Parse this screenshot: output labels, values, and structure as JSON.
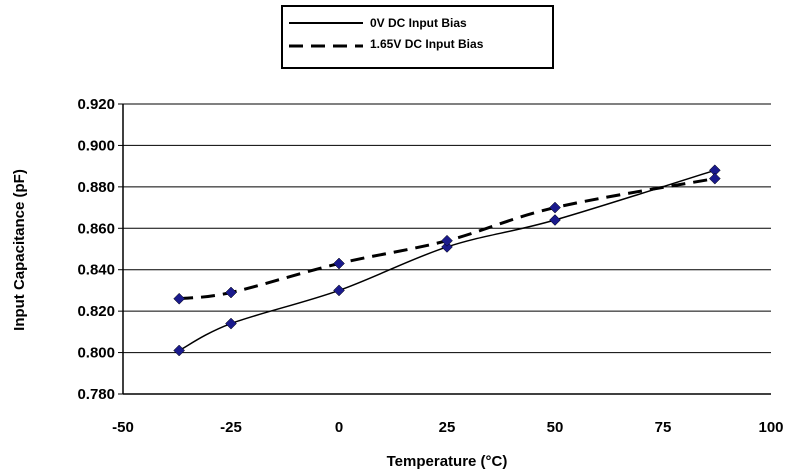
{
  "chart_data": {
    "type": "line",
    "xlabel": "Temperature (°C)",
    "ylabel": "Input Capacitance (pF)",
    "xlim": [
      -50,
      100
    ],
    "ylim": [
      0.78,
      0.92
    ],
    "x_ticks": [
      "-50",
      "-25",
      "0",
      "25",
      "50",
      "75",
      "100"
    ],
    "y_ticks": [
      "0.780",
      "0.800",
      "0.820",
      "0.840",
      "0.860",
      "0.880",
      "0.900",
      "0.920"
    ],
    "grid": "horizontal",
    "legend_position": "top-center",
    "marker_color": "#1a1a8c",
    "series": [
      {
        "name": "0V DC Input Bias",
        "style": "solid",
        "x": [
          -37,
          -25,
          0,
          25,
          50,
          87
        ],
        "y": [
          0.801,
          0.814,
          0.83,
          0.851,
          0.864,
          0.888
        ]
      },
      {
        "name": "1.65V DC Input Bias",
        "style": "dashed",
        "x": [
          -37,
          -25,
          0,
          25,
          50,
          87
        ],
        "y": [
          0.826,
          0.829,
          0.843,
          0.854,
          0.87,
          0.884
        ]
      }
    ]
  }
}
